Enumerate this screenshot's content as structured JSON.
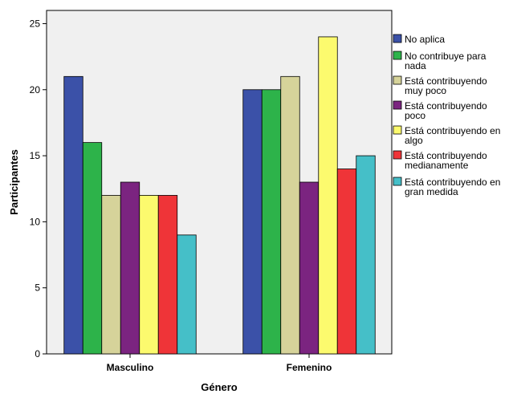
{
  "chart_data": {
    "type": "bar",
    "xlabel": "Género",
    "ylabel": "Participantes",
    "ylim": [
      0,
      26
    ],
    "yticks": [
      0,
      5,
      10,
      15,
      20,
      25
    ],
    "grid": false,
    "legend_position": "right",
    "categories": [
      "Masculino",
      "Femenino"
    ],
    "series": [
      {
        "name": [
          "No aplica"
        ],
        "color": "#3b51a8",
        "values": [
          21,
          20
        ]
      },
      {
        "name": [
          "No contribuye para",
          "nada"
        ],
        "color": "#2db34a",
        "values": [
          16,
          20
        ]
      },
      {
        "name": [
          "Está contribuyendo",
          "muy poco"
        ],
        "color": "#d6d39a",
        "values": [
          12,
          21
        ]
      },
      {
        "name": [
          "Está contribuyendo",
          "poco"
        ],
        "color": "#7b2480",
        "values": [
          13,
          13
        ]
      },
      {
        "name": [
          "Está contribuyendo en",
          "algo"
        ],
        "color": "#fcfa6e",
        "values": [
          12,
          24
        ]
      },
      {
        "name": [
          "Está contribuyendo",
          "medianamente"
        ],
        "color": "#ef3438",
        "values": [
          12,
          14
        ]
      },
      {
        "name": [
          "Está contribuyendo en",
          "gran medida"
        ],
        "color": "#45bfc8",
        "values": [
          9,
          15
        ]
      }
    ]
  }
}
